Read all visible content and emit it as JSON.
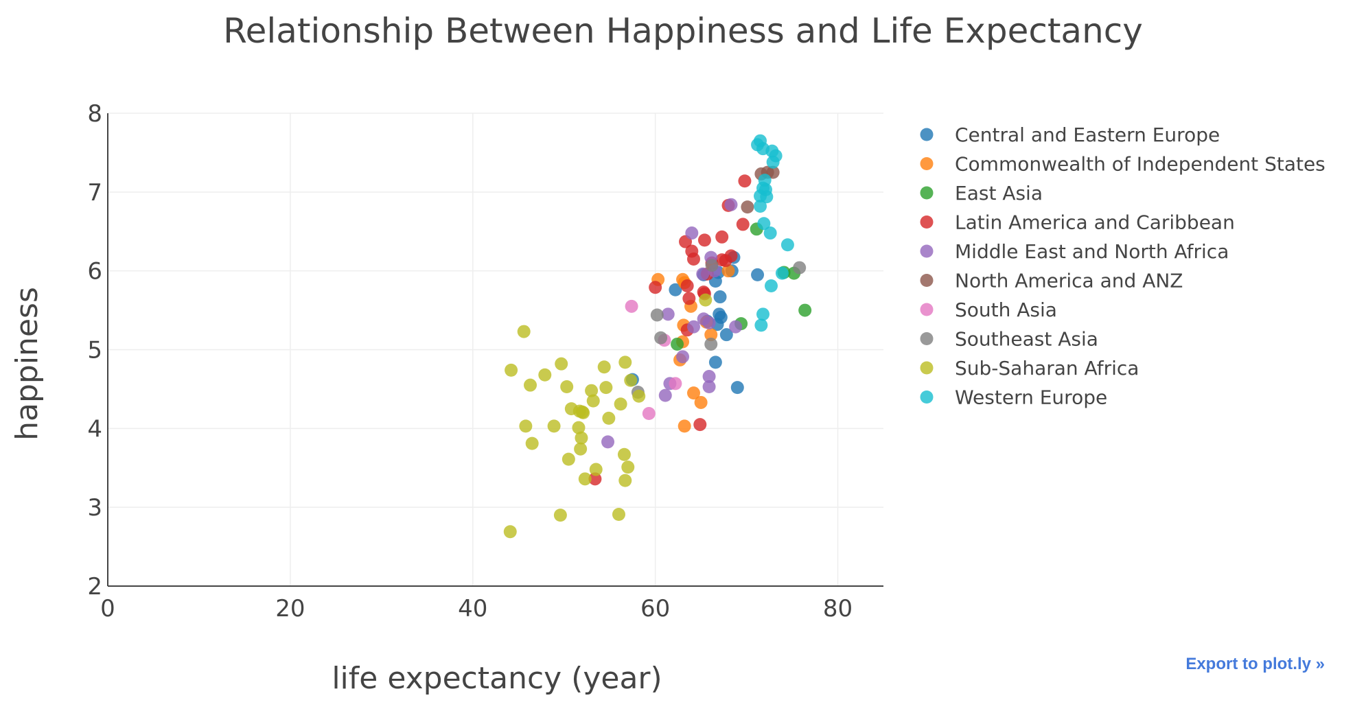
{
  "export_link_label": "Export to plot.ly »",
  "chart_data": {
    "type": "scatter",
    "title": "Relationship Between Happiness and Life Expectancy",
    "xlabel": "life expectancy (year)",
    "ylabel": "happiness",
    "xlim": [
      0,
      85
    ],
    "ylim": [
      2,
      8
    ],
    "xticks": [
      0,
      20,
      40,
      60,
      80
    ],
    "yticks": [
      2,
      3,
      4,
      5,
      6,
      7,
      8
    ],
    "grid": true,
    "legend_position": "top-right",
    "series": [
      {
        "name": "Central and Eastern Europe",
        "color": "#1f77b4",
        "points": [
          [
            62.2,
            5.76
          ],
          [
            65.3,
            5.95
          ],
          [
            66.6,
            5.87
          ],
          [
            66.9,
            5.98
          ],
          [
            68.4,
            6.0
          ],
          [
            68.6,
            6.17
          ],
          [
            67.1,
            5.67
          ],
          [
            67.0,
            5.45
          ],
          [
            67.2,
            5.41
          ],
          [
            66.8,
            5.32
          ],
          [
            67.8,
            5.19
          ],
          [
            66.6,
            4.84
          ],
          [
            69.0,
            4.52
          ],
          [
            71.2,
            5.95
          ],
          [
            57.5,
            4.62
          ],
          [
            65.7,
            5.36
          ]
        ]
      },
      {
        "name": "Commonwealth of Independent States",
        "color": "#ff7f0e",
        "points": [
          [
            60.3,
            5.89
          ],
          [
            63.0,
            5.89
          ],
          [
            63.2,
            5.85
          ],
          [
            63.9,
            5.55
          ],
          [
            63.1,
            5.31
          ],
          [
            63.0,
            5.1
          ],
          [
            62.7,
            4.87
          ],
          [
            66.1,
            5.19
          ],
          [
            64.2,
            4.45
          ],
          [
            65.0,
            4.33
          ],
          [
            63.2,
            4.03
          ],
          [
            65.6,
            5.35
          ],
          [
            68.0,
            6.0
          ]
        ]
      },
      {
        "name": "East Asia",
        "color": "#2ca02c",
        "points": [
          [
            71.1,
            6.53
          ],
          [
            74.1,
            5.98
          ],
          [
            75.2,
            5.97
          ],
          [
            76.4,
            5.5
          ],
          [
            69.4,
            5.33
          ],
          [
            62.4,
            5.07
          ]
        ]
      },
      {
        "name": "Latin America and Caribbean",
        "color": "#d62728",
        "points": [
          [
            69.8,
            7.14
          ],
          [
            68.0,
            6.83
          ],
          [
            69.6,
            6.59
          ],
          [
            67.3,
            6.43
          ],
          [
            63.3,
            6.37
          ],
          [
            65.4,
            6.39
          ],
          [
            64.0,
            6.25
          ],
          [
            64.2,
            6.15
          ],
          [
            67.3,
            6.14
          ],
          [
            67.7,
            6.13
          ],
          [
            68.3,
            6.19
          ],
          [
            66.2,
            6.1
          ],
          [
            65.7,
            5.96
          ],
          [
            60.0,
            5.79
          ],
          [
            63.5,
            5.81
          ],
          [
            65.3,
            5.73
          ],
          [
            63.7,
            5.65
          ],
          [
            65.4,
            5.71
          ],
          [
            63.5,
            5.25
          ],
          [
            64.9,
            4.05
          ],
          [
            53.4,
            3.36
          ]
        ]
      },
      {
        "name": "Middle East and North Africa",
        "color": "#9467bd",
        "points": [
          [
            68.3,
            6.84
          ],
          [
            64.0,
            6.48
          ],
          [
            66.1,
            6.17
          ],
          [
            66.5,
            6.0
          ],
          [
            65.2,
            5.96
          ],
          [
            61.4,
            5.45
          ],
          [
            65.3,
            5.39
          ],
          [
            65.9,
            5.34
          ],
          [
            64.2,
            5.29
          ],
          [
            68.8,
            5.29
          ],
          [
            63.0,
            4.91
          ],
          [
            65.9,
            4.66
          ],
          [
            61.6,
            4.57
          ],
          [
            65.9,
            4.53
          ],
          [
            61.1,
            4.42
          ],
          [
            54.8,
            3.83
          ]
        ]
      },
      {
        "name": "North America and ANZ",
        "color": "#8c564b",
        "points": [
          [
            71.6,
            7.23
          ],
          [
            72.3,
            7.25
          ],
          [
            72.9,
            7.25
          ],
          [
            70.1,
            6.81
          ]
        ]
      },
      {
        "name": "South Asia",
        "color": "#e377c2",
        "points": [
          [
            57.4,
            5.55
          ],
          [
            61.0,
            5.12
          ],
          [
            62.2,
            4.57
          ],
          [
            59.3,
            4.19
          ]
        ]
      },
      {
        "name": "Southeast Asia",
        "color": "#7f7f7f",
        "points": [
          [
            75.8,
            6.04
          ],
          [
            66.2,
            6.07
          ],
          [
            60.2,
            5.44
          ],
          [
            60.6,
            5.15
          ],
          [
            66.1,
            5.07
          ],
          [
            58.1,
            4.46
          ]
        ]
      },
      {
        "name": "Sub-Saharan Africa",
        "color": "#bcbd22",
        "points": [
          [
            45.6,
            5.23
          ],
          [
            44.2,
            4.74
          ],
          [
            46.3,
            4.55
          ],
          [
            47.9,
            4.68
          ],
          [
            49.7,
            4.82
          ],
          [
            50.3,
            4.53
          ],
          [
            54.4,
            4.78
          ],
          [
            56.7,
            4.84
          ],
          [
            53.0,
            4.48
          ],
          [
            54.6,
            4.52
          ],
          [
            53.2,
            4.35
          ],
          [
            57.3,
            4.61
          ],
          [
            58.2,
            4.41
          ],
          [
            56.2,
            4.31
          ],
          [
            50.8,
            4.25
          ],
          [
            51.7,
            4.22
          ],
          [
            52.1,
            4.2
          ],
          [
            54.9,
            4.13
          ],
          [
            45.8,
            4.03
          ],
          [
            48.9,
            4.03
          ],
          [
            51.6,
            4.01
          ],
          [
            51.9,
            3.88
          ],
          [
            46.5,
            3.81
          ],
          [
            51.8,
            3.74
          ],
          [
            56.6,
            3.67
          ],
          [
            50.5,
            3.61
          ],
          [
            57.0,
            3.51
          ],
          [
            53.5,
            3.48
          ],
          [
            52.3,
            3.36
          ],
          [
            56.7,
            3.34
          ],
          [
            49.6,
            2.9
          ],
          [
            56.0,
            2.91
          ],
          [
            44.1,
            2.69
          ],
          [
            52.0,
            4.21
          ],
          [
            65.5,
            5.63
          ]
        ]
      },
      {
        "name": "Western Europe",
        "color": "#17becf",
        "points": [
          [
            71.5,
            7.65
          ],
          [
            71.2,
            7.6
          ],
          [
            72.8,
            7.52
          ],
          [
            71.8,
            7.55
          ],
          [
            73.2,
            7.46
          ],
          [
            72.9,
            7.38
          ],
          [
            71.8,
            7.05
          ],
          [
            72.1,
            7.03
          ],
          [
            71.5,
            6.95
          ],
          [
            72.2,
            6.94
          ],
          [
            71.5,
            6.82
          ],
          [
            71.9,
            6.6
          ],
          [
            72.6,
            6.48
          ],
          [
            74.5,
            6.33
          ],
          [
            73.9,
            5.97
          ],
          [
            72.7,
            5.81
          ],
          [
            71.8,
            5.45
          ],
          [
            71.6,
            5.31
          ],
          [
            72.0,
            7.15
          ]
        ]
      }
    ]
  }
}
